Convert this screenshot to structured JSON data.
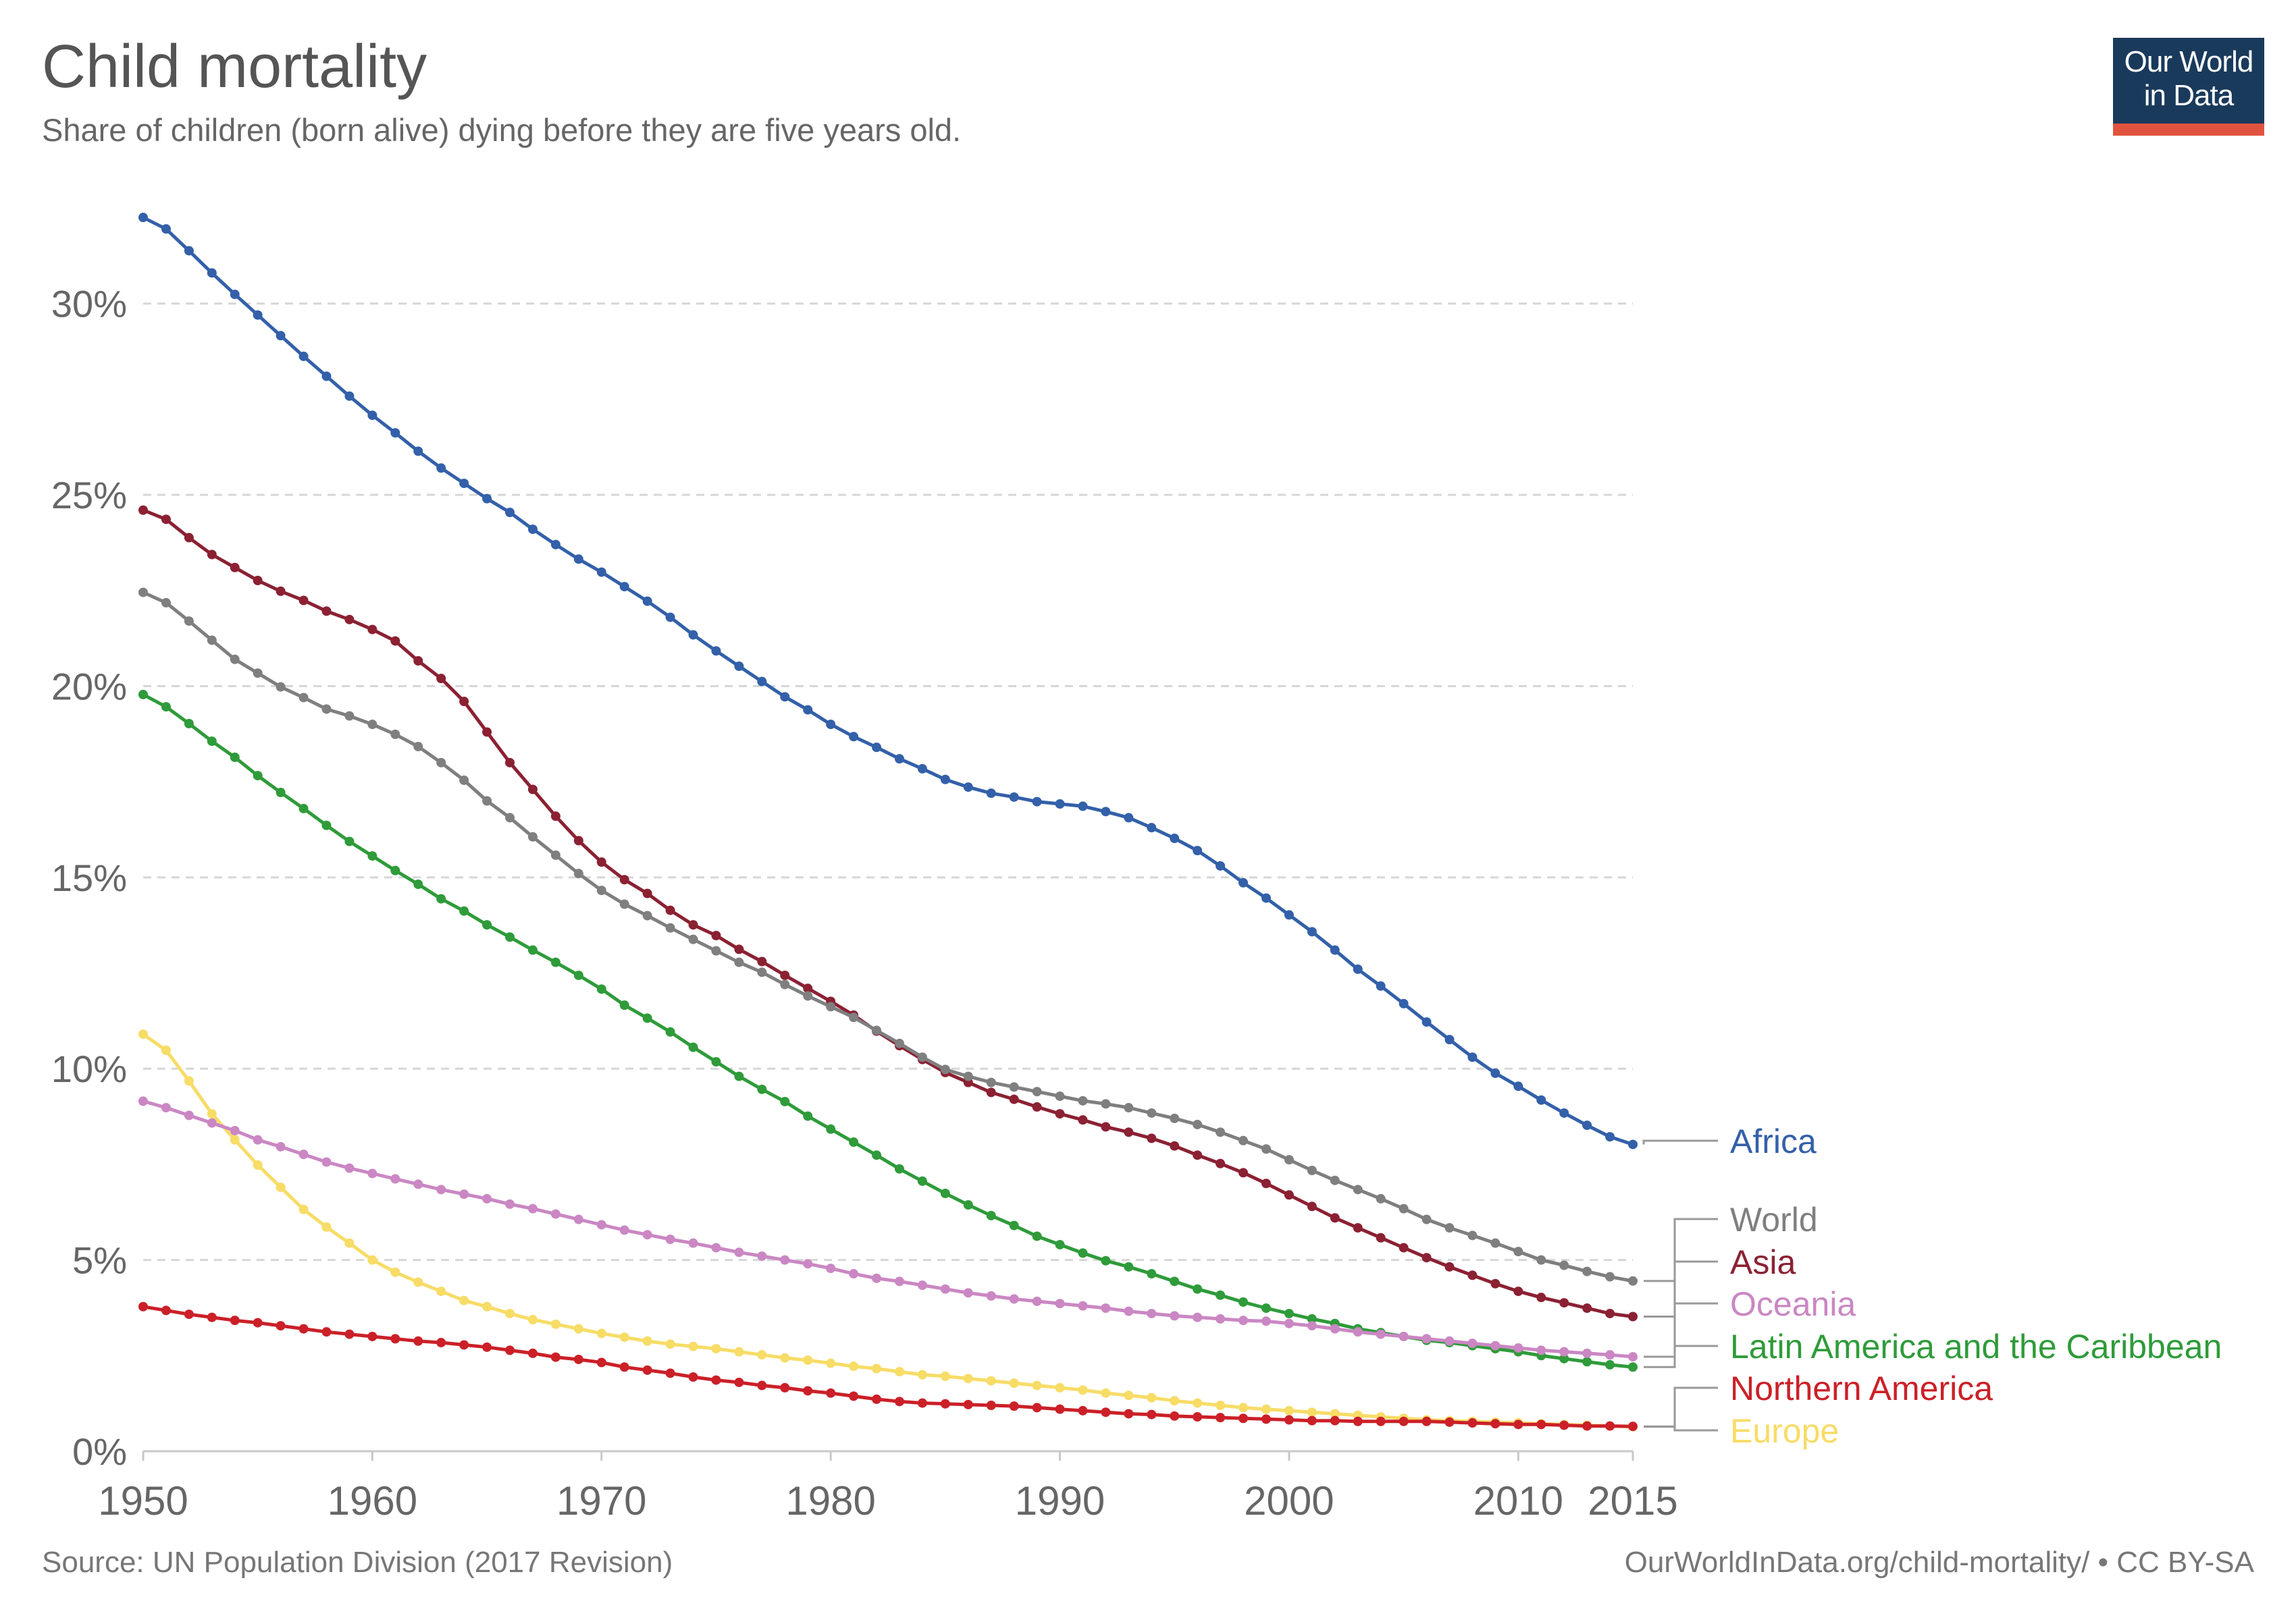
{
  "header": {
    "title": "Child mortality",
    "subtitle": "Share of children (born alive) dying before they are five years old."
  },
  "logo": {
    "line1": "Our World",
    "line2": "in Data"
  },
  "footer": {
    "source": "Source: UN Population Division (2017 Revision)",
    "license": "OurWorldInData.org/child-mortality/ • CC BY-SA"
  },
  "chart_data": {
    "type": "line",
    "title": "Child mortality",
    "subtitle": "Share of children (born alive) dying before they are five years old.",
    "xlim": [
      1950,
      2015
    ],
    "ylim": [
      0,
      32.5
    ],
    "xticks": [
      1950,
      1960,
      1970,
      1980,
      1990,
      2000,
      2010,
      2015
    ],
    "yticks": [
      0,
      5,
      10,
      15,
      20,
      25,
      30
    ],
    "ytick_suffix": "%",
    "grid": "horizontal dashed",
    "legend": "right (line end labels)",
    "x": [
      1950,
      1951,
      1952,
      1953,
      1954,
      1955,
      1956,
      1957,
      1958,
      1959,
      1960,
      1961,
      1962,
      1963,
      1964,
      1965,
      1966,
      1967,
      1968,
      1969,
      1970,
      1971,
      1972,
      1973,
      1974,
      1975,
      1976,
      1977,
      1978,
      1979,
      1980,
      1981,
      1982,
      1983,
      1984,
      1985,
      1986,
      1987,
      1988,
      1989,
      1990,
      1991,
      1992,
      1993,
      1994,
      1995,
      1996,
      1997,
      1998,
      1999,
      2000,
      2001,
      2002,
      2003,
      2004,
      2005,
      2006,
      2007,
      2008,
      2009,
      2010,
      2011,
      2012,
      2013,
      2014,
      2015
    ],
    "series": [
      {
        "name": "Africa",
        "color": "#3360a9",
        "values": [
          32.25,
          31.95,
          31.38,
          30.8,
          30.24,
          29.7,
          29.16,
          28.62,
          28.1,
          27.58,
          27.08,
          26.62,
          26.14,
          25.7,
          25.3,
          24.9,
          24.54,
          24.1,
          23.7,
          23.32,
          22.98,
          22.6,
          22.22,
          21.8,
          21.34,
          20.92,
          20.52,
          20.12,
          19.72,
          19.38,
          19.0,
          18.68,
          18.4,
          18.1,
          17.84,
          17.56,
          17.36,
          17.2,
          17.1,
          16.98,
          16.92,
          16.86,
          16.72,
          16.56,
          16.3,
          16.02,
          15.7,
          15.3,
          14.86,
          14.46,
          14.02,
          13.58,
          13.1,
          12.6,
          12.16,
          11.7,
          11.22,
          10.76,
          10.3,
          9.88,
          9.54,
          9.18,
          8.84,
          8.52,
          8.22,
          8.02
        ]
      },
      {
        "name": "World",
        "color": "#7f7f7f",
        "values": [
          22.45,
          22.18,
          21.7,
          21.2,
          20.7,
          20.34,
          19.98,
          19.7,
          19.4,
          19.22,
          19.0,
          18.74,
          18.42,
          18.0,
          17.54,
          17.0,
          16.56,
          16.06,
          15.58,
          15.1,
          14.66,
          14.3,
          14.0,
          13.68,
          13.38,
          13.08,
          12.78,
          12.52,
          12.2,
          11.9,
          11.62,
          11.34,
          11.0,
          10.66,
          10.3,
          9.98,
          9.8,
          9.64,
          9.52,
          9.4,
          9.28,
          9.16,
          9.08,
          8.98,
          8.84,
          8.7,
          8.54,
          8.34,
          8.12,
          7.9,
          7.62,
          7.34,
          7.08,
          6.84,
          6.6,
          6.34,
          6.06,
          5.84,
          5.64,
          5.44,
          5.22,
          5.0,
          4.86,
          4.7,
          4.56,
          4.45
        ]
      },
      {
        "name": "Asia",
        "color": "#8b2133",
        "values": [
          24.6,
          24.36,
          23.88,
          23.44,
          23.1,
          22.76,
          22.48,
          22.24,
          21.96,
          21.74,
          21.48,
          21.18,
          20.66,
          20.2,
          19.6,
          18.8,
          18.0,
          17.3,
          16.6,
          15.96,
          15.4,
          14.94,
          14.58,
          14.14,
          13.76,
          13.48,
          13.12,
          12.8,
          12.44,
          12.1,
          11.76,
          11.4,
          10.98,
          10.6,
          10.24,
          9.9,
          9.64,
          9.38,
          9.2,
          9.0,
          8.82,
          8.66,
          8.48,
          8.34,
          8.18,
          7.98,
          7.74,
          7.52,
          7.28,
          7.0,
          6.7,
          6.4,
          6.1,
          5.84,
          5.58,
          5.32,
          5.06,
          4.82,
          4.6,
          4.38,
          4.18,
          4.02,
          3.88,
          3.74,
          3.6,
          3.52
        ]
      },
      {
        "name": "Oceania",
        "color": "#ca87c3",
        "values": [
          9.15,
          8.98,
          8.78,
          8.58,
          8.38,
          8.14,
          7.96,
          7.76,
          7.56,
          7.4,
          7.26,
          7.12,
          6.98,
          6.84,
          6.72,
          6.6,
          6.46,
          6.34,
          6.2,
          6.06,
          5.92,
          5.78,
          5.66,
          5.54,
          5.44,
          5.32,
          5.2,
          5.1,
          5.0,
          4.9,
          4.78,
          4.64,
          4.52,
          4.44,
          4.34,
          4.24,
          4.14,
          4.06,
          3.98,
          3.92,
          3.86,
          3.8,
          3.74,
          3.66,
          3.6,
          3.54,
          3.5,
          3.46,
          3.42,
          3.4,
          3.34,
          3.28,
          3.2,
          3.12,
          3.06,
          3.0,
          2.94,
          2.88,
          2.82,
          2.76,
          2.7,
          2.64,
          2.6,
          2.56,
          2.52,
          2.47
        ]
      },
      {
        "name": "Latin America and the Caribbean",
        "color": "#2f9b3a",
        "values": [
          19.78,
          19.46,
          19.02,
          18.56,
          18.14,
          17.66,
          17.22,
          16.8,
          16.36,
          15.94,
          15.56,
          15.18,
          14.82,
          14.44,
          14.12,
          13.76,
          13.44,
          13.1,
          12.78,
          12.44,
          12.08,
          11.66,
          11.32,
          10.96,
          10.56,
          10.18,
          9.8,
          9.46,
          9.14,
          8.76,
          8.42,
          8.08,
          7.74,
          7.38,
          7.06,
          6.74,
          6.44,
          6.16,
          5.9,
          5.62,
          5.4,
          5.18,
          4.98,
          4.82,
          4.64,
          4.44,
          4.24,
          4.08,
          3.9,
          3.74,
          3.6,
          3.46,
          3.34,
          3.2,
          3.1,
          3.0,
          2.9,
          2.84,
          2.76,
          2.68,
          2.6,
          2.5,
          2.42,
          2.34,
          2.26,
          2.2
        ]
      },
      {
        "name": "Northern America",
        "color": "#cb2028",
        "values": [
          3.78,
          3.68,
          3.58,
          3.5,
          3.42,
          3.36,
          3.28,
          3.2,
          3.12,
          3.06,
          3.0,
          2.94,
          2.88,
          2.84,
          2.78,
          2.72,
          2.64,
          2.56,
          2.46,
          2.4,
          2.32,
          2.2,
          2.12,
          2.04,
          1.94,
          1.86,
          1.8,
          1.72,
          1.66,
          1.58,
          1.52,
          1.44,
          1.36,
          1.3,
          1.26,
          1.24,
          1.22,
          1.2,
          1.18,
          1.14,
          1.1,
          1.06,
          1.02,
          0.98,
          0.96,
          0.92,
          0.9,
          0.88,
          0.86,
          0.84,
          0.82,
          0.8,
          0.8,
          0.78,
          0.78,
          0.78,
          0.78,
          0.76,
          0.74,
          0.72,
          0.7,
          0.7,
          0.68,
          0.66,
          0.66,
          0.65
        ]
      },
      {
        "name": "Europe",
        "color": "#f7dc66",
        "values": [
          10.9,
          10.48,
          9.68,
          8.82,
          8.14,
          7.48,
          6.9,
          6.32,
          5.86,
          5.44,
          5.0,
          4.68,
          4.42,
          4.18,
          3.94,
          3.78,
          3.6,
          3.44,
          3.32,
          3.2,
          3.08,
          2.98,
          2.88,
          2.8,
          2.74,
          2.68,
          2.6,
          2.52,
          2.44,
          2.38,
          2.3,
          2.22,
          2.16,
          2.08,
          2.0,
          1.96,
          1.9,
          1.84,
          1.78,
          1.72,
          1.66,
          1.6,
          1.52,
          1.46,
          1.4,
          1.32,
          1.26,
          1.2,
          1.14,
          1.1,
          1.06,
          1.02,
          0.98,
          0.94,
          0.9,
          0.86,
          0.82,
          0.8,
          0.78,
          0.76,
          0.74,
          0.72,
          0.7,
          0.68,
          0.66,
          0.64
        ]
      }
    ]
  }
}
